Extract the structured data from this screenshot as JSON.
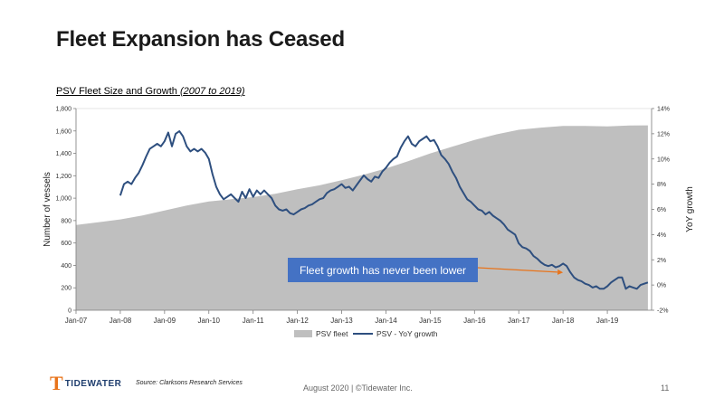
{
  "slide": {
    "title": "Fleet Expansion has Ceased",
    "chart_title_main": "PSV Fleet Size and Growth ",
    "chart_title_period": "(2007 to 2019)",
    "callout": "Fleet growth has never been lower",
    "logo_mark": "T",
    "logo_text": "TIDEWATER",
    "source": "Source: Clarksons Research Services",
    "footer": "August 2020 | ©Tidewater Inc.",
    "page_number": "11"
  },
  "colors": {
    "fleet_area": "#bfbfbf",
    "growth_line": "#2e4f7f",
    "callout_bg": "#4472c4",
    "arrow": "#e8731a",
    "logo_orange": "#e8731a",
    "logo_navy": "#1f3e6e"
  },
  "chart_data": {
    "type": "area+line",
    "xlabel": "",
    "ylabel_left": "Number of vessels",
    "ylabel_right": "YoY growth",
    "x_ticks": [
      "Jan-07",
      "Jan-08",
      "Jan-09",
      "Jan-10",
      "Jan-11",
      "Jan-12",
      "Jan-13",
      "Jan-14",
      "Jan-15",
      "Jan-16",
      "Jan-17",
      "Jan-18",
      "Jan-19"
    ],
    "y_left_ticks": [
      "0",
      "200",
      "400",
      "600",
      "800",
      "1,000",
      "1,200",
      "1,400",
      "1,600",
      "1,800"
    ],
    "y_right_ticks": [
      "-2%",
      "0%",
      "2%",
      "4%",
      "6%",
      "8%",
      "10%",
      "12%",
      "14%"
    ],
    "ylim_left": [
      0,
      1800
    ],
    "ylim_right": [
      -2,
      14
    ],
    "x_range": [
      "2007-01",
      "2020-01"
    ],
    "legend_position": "bottom-center",
    "series": [
      {
        "name": "PSV fleet",
        "axis": "left",
        "kind": "area",
        "points": [
          [
            "2007-01",
            760
          ],
          [
            "2007-07",
            785
          ],
          [
            "2008-01",
            810
          ],
          [
            "2008-07",
            845
          ],
          [
            "2009-01",
            890
          ],
          [
            "2009-07",
            935
          ],
          [
            "2010-01",
            970
          ],
          [
            "2010-07",
            990
          ],
          [
            "2011-01",
            1010
          ],
          [
            "2011-07",
            1040
          ],
          [
            "2012-01",
            1080
          ],
          [
            "2012-07",
            1115
          ],
          [
            "2013-01",
            1160
          ],
          [
            "2013-07",
            1210
          ],
          [
            "2014-01",
            1265
          ],
          [
            "2014-07",
            1330
          ],
          [
            "2015-01",
            1400
          ],
          [
            "2015-07",
            1460
          ],
          [
            "2016-01",
            1520
          ],
          [
            "2016-07",
            1570
          ],
          [
            "2017-01",
            1610
          ],
          [
            "2017-07",
            1630
          ],
          [
            "2018-01",
            1645
          ],
          [
            "2018-07",
            1645
          ],
          [
            "2019-01",
            1640
          ],
          [
            "2019-07",
            1648
          ],
          [
            "2019-12",
            1650
          ]
        ]
      },
      {
        "name": "PSV - YoY growth",
        "axis": "right",
        "kind": "line",
        "points": [
          [
            "2008-01",
            7.1
          ],
          [
            "2008-02",
            8.0
          ],
          [
            "2008-03",
            8.2
          ],
          [
            "2008-04",
            8.0
          ],
          [
            "2008-05",
            8.5
          ],
          [
            "2008-06",
            8.9
          ],
          [
            "2008-07",
            9.5
          ],
          [
            "2008-08",
            10.2
          ],
          [
            "2008-09",
            10.8
          ],
          [
            "2008-10",
            11.0
          ],
          [
            "2008-11",
            11.2
          ],
          [
            "2008-12",
            11.0
          ],
          [
            "2009-01",
            11.4
          ],
          [
            "2009-02",
            12.1
          ],
          [
            "2009-03",
            11.0
          ],
          [
            "2009-04",
            12.0
          ],
          [
            "2009-05",
            12.2
          ],
          [
            "2009-06",
            11.8
          ],
          [
            "2009-07",
            11.0
          ],
          [
            "2009-08",
            10.6
          ],
          [
            "2009-09",
            10.8
          ],
          [
            "2009-10",
            10.6
          ],
          [
            "2009-11",
            10.8
          ],
          [
            "2009-12",
            10.5
          ],
          [
            "2010-01",
            10.0
          ],
          [
            "2010-02",
            8.8
          ],
          [
            "2010-03",
            7.8
          ],
          [
            "2010-04",
            7.2
          ],
          [
            "2010-05",
            6.8
          ],
          [
            "2010-06",
            7.0
          ],
          [
            "2010-07",
            7.2
          ],
          [
            "2010-08",
            6.9
          ],
          [
            "2010-09",
            6.6
          ],
          [
            "2010-10",
            7.4
          ],
          [
            "2010-11",
            6.9
          ],
          [
            "2010-12",
            7.6
          ],
          [
            "2011-01",
            7.0
          ],
          [
            "2011-02",
            7.5
          ],
          [
            "2011-03",
            7.2
          ],
          [
            "2011-04",
            7.5
          ],
          [
            "2011-05",
            7.2
          ],
          [
            "2011-06",
            6.9
          ],
          [
            "2011-07",
            6.3
          ],
          [
            "2011-08",
            6.0
          ],
          [
            "2011-09",
            5.9
          ],
          [
            "2011-10",
            6.0
          ],
          [
            "2011-11",
            5.7
          ],
          [
            "2011-12",
            5.6
          ],
          [
            "2012-01",
            5.8
          ],
          [
            "2012-02",
            6.0
          ],
          [
            "2012-03",
            6.1
          ],
          [
            "2012-04",
            6.3
          ],
          [
            "2012-05",
            6.4
          ],
          [
            "2012-06",
            6.6
          ],
          [
            "2012-07",
            6.8
          ],
          [
            "2012-08",
            6.9
          ],
          [
            "2012-09",
            7.3
          ],
          [
            "2012-10",
            7.5
          ],
          [
            "2012-11",
            7.6
          ],
          [
            "2012-12",
            7.8
          ],
          [
            "2013-01",
            8.0
          ],
          [
            "2013-02",
            7.7
          ],
          [
            "2013-03",
            7.8
          ],
          [
            "2013-04",
            7.5
          ],
          [
            "2013-05",
            7.9
          ],
          [
            "2013-06",
            8.3
          ],
          [
            "2013-07",
            8.7
          ],
          [
            "2013-08",
            8.4
          ],
          [
            "2013-09",
            8.2
          ],
          [
            "2013-10",
            8.6
          ],
          [
            "2013-11",
            8.5
          ],
          [
            "2013-12",
            9.0
          ],
          [
            "2014-01",
            9.3
          ],
          [
            "2014-02",
            9.7
          ],
          [
            "2014-03",
            10.0
          ],
          [
            "2014-04",
            10.2
          ],
          [
            "2014-05",
            10.9
          ],
          [
            "2014-06",
            11.4
          ],
          [
            "2014-07",
            11.8
          ],
          [
            "2014-08",
            11.2
          ],
          [
            "2014-09",
            11.0
          ],
          [
            "2014-10",
            11.4
          ],
          [
            "2014-11",
            11.6
          ],
          [
            "2014-12",
            11.8
          ],
          [
            "2015-01",
            11.4
          ],
          [
            "2015-02",
            11.5
          ],
          [
            "2015-03",
            11.0
          ],
          [
            "2015-04",
            10.3
          ],
          [
            "2015-05",
            10.0
          ],
          [
            "2015-06",
            9.6
          ],
          [
            "2015-07",
            9.0
          ],
          [
            "2015-08",
            8.5
          ],
          [
            "2015-09",
            7.8
          ],
          [
            "2015-10",
            7.3
          ],
          [
            "2015-11",
            6.8
          ],
          [
            "2015-12",
            6.6
          ],
          [
            "2016-01",
            6.3
          ],
          [
            "2016-02",
            6.0
          ],
          [
            "2016-03",
            5.9
          ],
          [
            "2016-04",
            5.6
          ],
          [
            "2016-05",
            5.8
          ],
          [
            "2016-06",
            5.5
          ],
          [
            "2016-07",
            5.3
          ],
          [
            "2016-08",
            5.1
          ],
          [
            "2016-09",
            4.8
          ],
          [
            "2016-10",
            4.4
          ],
          [
            "2016-11",
            4.2
          ],
          [
            "2016-12",
            4.0
          ],
          [
            "2017-01",
            3.3
          ],
          [
            "2017-02",
            3.0
          ],
          [
            "2017-03",
            2.9
          ],
          [
            "2017-04",
            2.7
          ],
          [
            "2017-05",
            2.3
          ],
          [
            "2017-06",
            2.1
          ],
          [
            "2017-07",
            1.8
          ],
          [
            "2017-08",
            1.6
          ],
          [
            "2017-09",
            1.5
          ],
          [
            "2017-10",
            1.6
          ],
          [
            "2017-11",
            1.4
          ],
          [
            "2017-12",
            1.5
          ],
          [
            "2018-01",
            1.7
          ],
          [
            "2018-02",
            1.5
          ],
          [
            "2018-03",
            1.0
          ],
          [
            "2018-04",
            0.6
          ],
          [
            "2018-05",
            0.4
          ],
          [
            "2018-06",
            0.3
          ],
          [
            "2018-07",
            0.1
          ],
          [
            "2018-08",
            0.0
          ],
          [
            "2018-09",
            -0.2
          ],
          [
            "2018-10",
            -0.1
          ],
          [
            "2018-11",
            -0.3
          ],
          [
            "2018-12",
            -0.3
          ],
          [
            "2019-01",
            -0.1
          ],
          [
            "2019-02",
            0.2
          ],
          [
            "2019-03",
            0.4
          ],
          [
            "2019-04",
            0.6
          ],
          [
            "2019-05",
            0.6
          ],
          [
            "2019-06",
            -0.3
          ],
          [
            "2019-07",
            -0.1
          ],
          [
            "2019-08",
            -0.2
          ],
          [
            "2019-09",
            -0.3
          ],
          [
            "2019-10",
            0.0
          ],
          [
            "2019-11",
            0.1
          ],
          [
            "2019-12",
            0.2
          ]
        ]
      }
    ],
    "annotation": {
      "text_ref": "slide.callout",
      "arrow_to": [
        "2018-01",
        1.0
      ]
    }
  }
}
